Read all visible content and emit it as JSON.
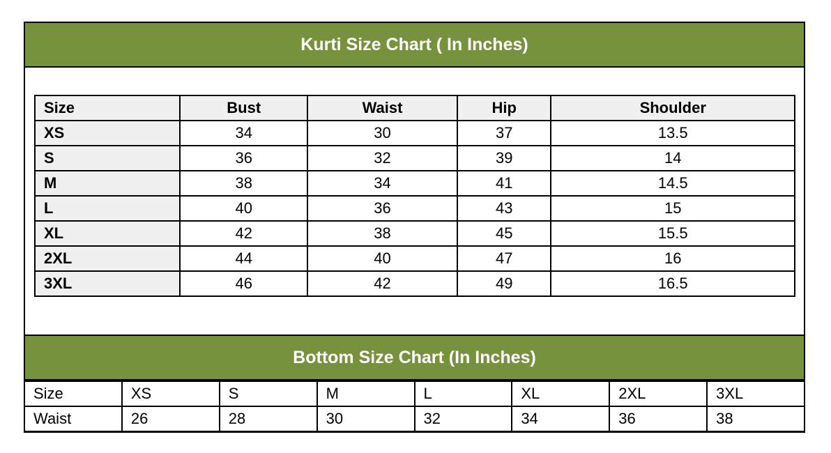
{
  "kurti": {
    "title": "Kurti Size Chart ( In Inches)",
    "headers": [
      "Size",
      "Bust",
      "Waist",
      "Hip",
      "Shoulder"
    ],
    "rows": [
      [
        "XS",
        "34",
        "30",
        "37",
        "13.5"
      ],
      [
        "S",
        "36",
        "32",
        "39",
        "14"
      ],
      [
        "M",
        "38",
        "34",
        "41",
        "14.5"
      ],
      [
        "L",
        "40",
        "36",
        "43",
        "15"
      ],
      [
        "XL",
        "42",
        "38",
        "45",
        "15.5"
      ],
      [
        "2XL",
        "44",
        "40",
        "47",
        "16"
      ],
      [
        "3XL",
        "46",
        "42",
        "49",
        "16.5"
      ]
    ]
  },
  "bottom": {
    "title": "Bottom Size Chart (In Inches)",
    "rows": [
      [
        "Size",
        "XS",
        "S",
        "M",
        "L",
        "XL",
        "2XL",
        "3XL"
      ],
      [
        "Waist",
        "26",
        "28",
        "30",
        "32",
        "34",
        "36",
        "38"
      ]
    ]
  },
  "colors": {
    "banner": "#76923C",
    "header_fill": "#F0F0F0"
  }
}
